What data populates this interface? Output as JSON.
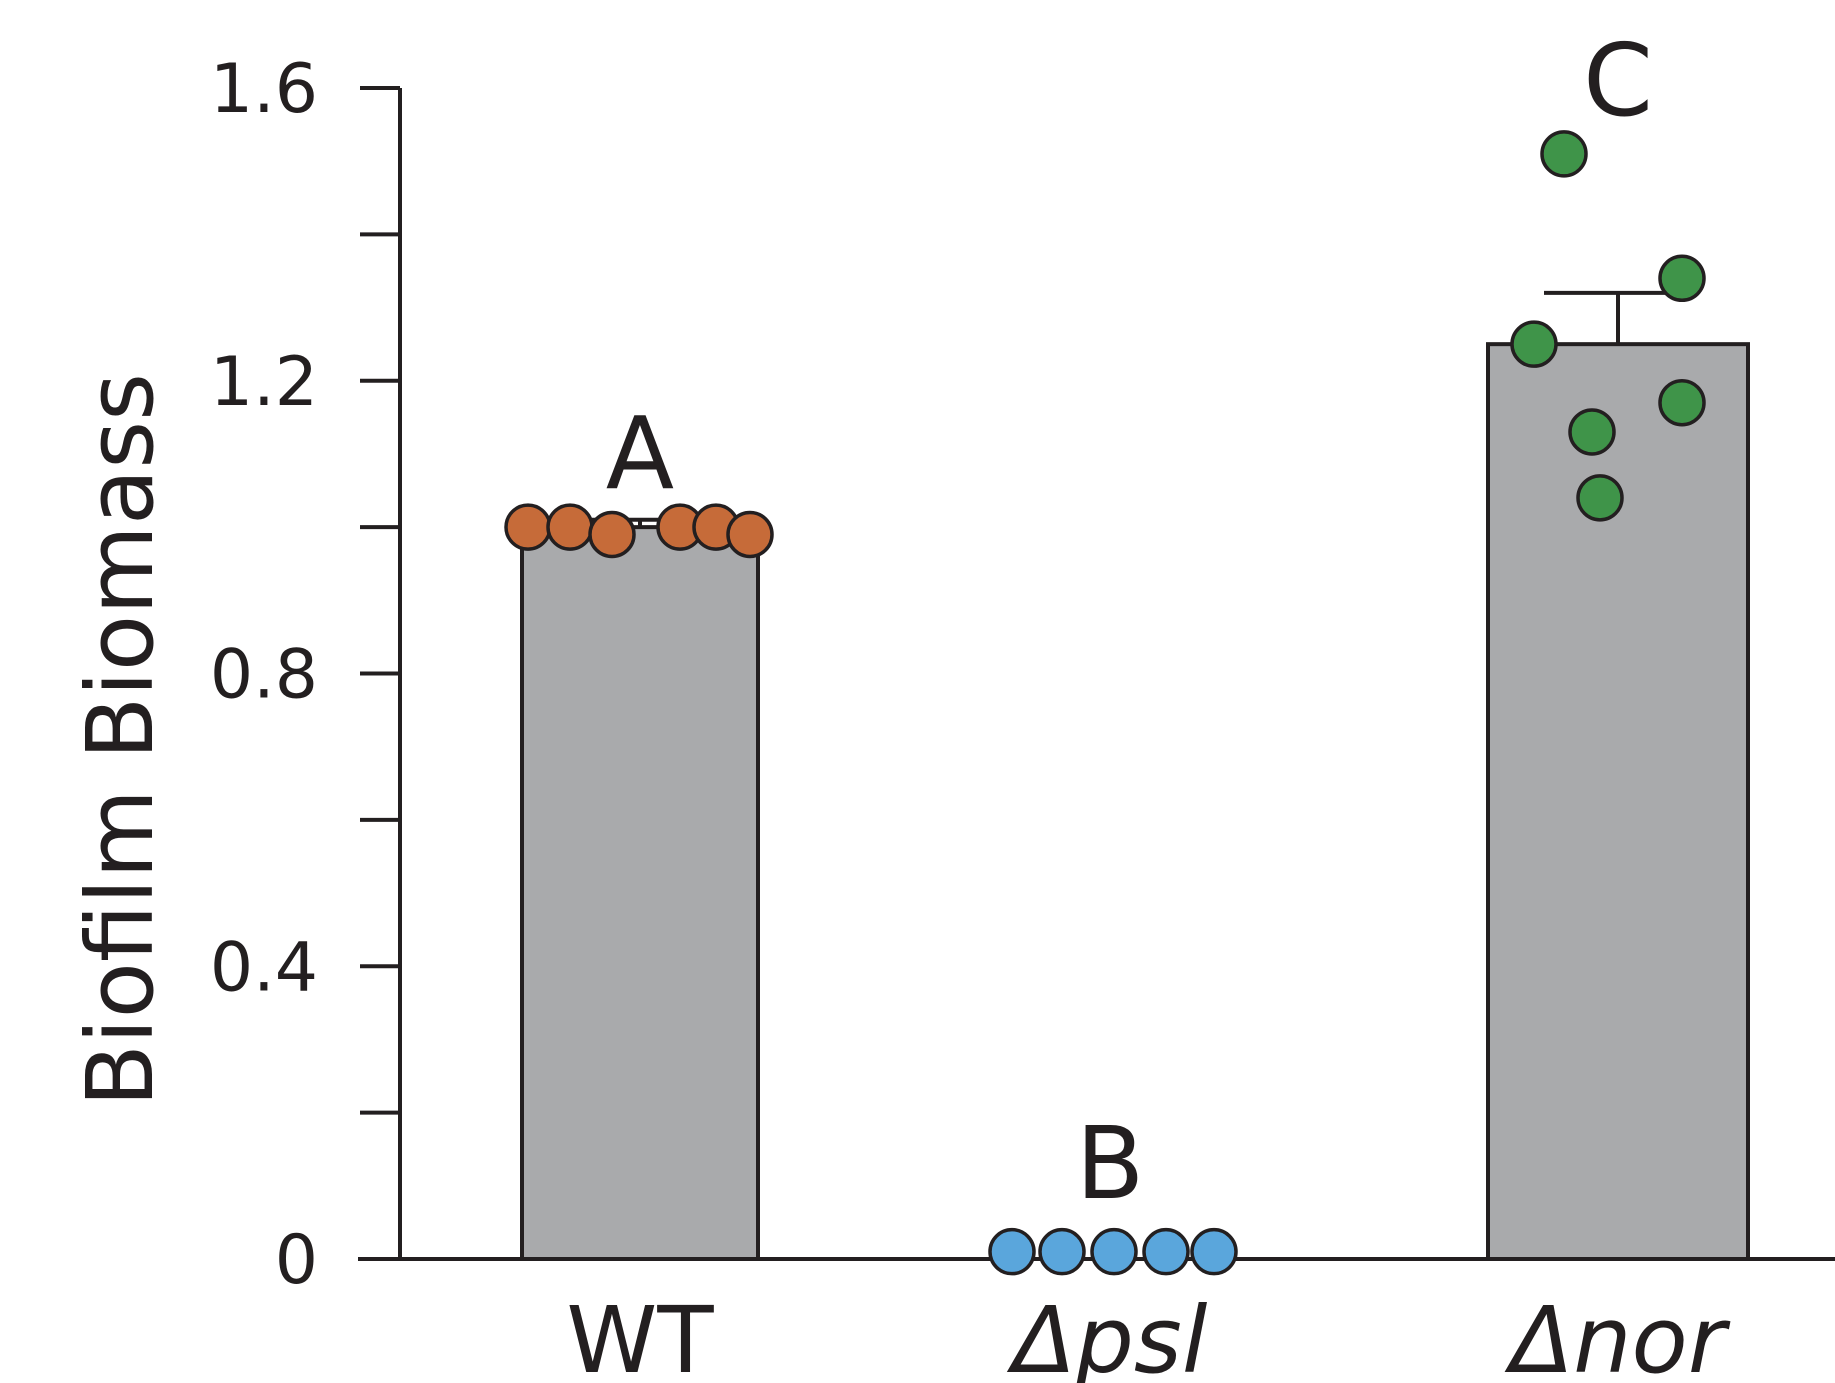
{
  "chart_data": {
    "type": "bar",
    "ylabel": "Biofilm Biomass",
    "xlabel": "",
    "ylim": [
      0,
      1.6
    ],
    "major_ticks": [
      0,
      0.4,
      0.8,
      1.2,
      1.6
    ],
    "tick_labels": [
      "0",
      "0.4",
      "0.8",
      "1.2",
      "1.6"
    ],
    "minor_ticks": [
      0.2,
      0.6,
      1.0,
      1.4
    ],
    "categories": [
      {
        "prefix": "",
        "name": "WT",
        "italic": false
      },
      {
        "prefix": "Δ",
        "name": "psl",
        "italic": true
      },
      {
        "prefix": "Δ",
        "name": "nor",
        "italic": true
      }
    ],
    "values": [
      1.0,
      0.0,
      1.25
    ],
    "error_bars": [
      0.01,
      0.0,
      0.07
    ],
    "significance_labels": [
      "A",
      "B",
      "C"
    ],
    "points": [
      [
        1.0,
        1.0,
        0.99,
        1.0,
        1.0,
        0.99
      ],
      [
        0.01,
        0.01,
        0.01,
        0.01,
        0.01
      ],
      [
        1.51,
        1.34,
        1.25,
        1.13,
        1.04,
        1.17
      ]
    ],
    "bar_color": "#a9aaac",
    "point_colors": [
      "#c66b39",
      "#5aa6dc",
      "#3f9449"
    ],
    "axis_color": "#231f20",
    "grid": false,
    "legend": "none"
  }
}
